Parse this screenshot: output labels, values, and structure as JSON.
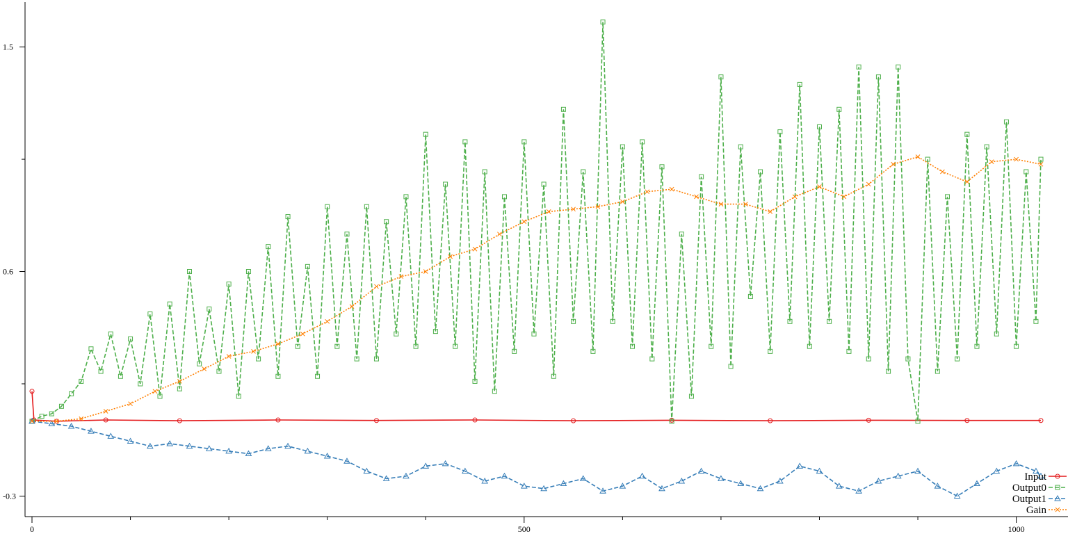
{
  "chart_data": {
    "type": "line",
    "title": "",
    "xlabel": "",
    "ylabel": "",
    "xlim": [
      0,
      1025
    ],
    "ylim": [
      -0.36,
      1.68
    ],
    "x_ticks": [
      0,
      500,
      1000
    ],
    "x_minor_ticks": [
      100,
      200,
      300,
      400,
      600,
      700,
      800,
      900
    ],
    "y_ticks": [
      -0.3,
      0.6,
      1.5
    ],
    "y_minor_ticks": [
      0.15,
      1.05
    ],
    "grid": false,
    "legend_position": "bottom-right",
    "series": [
      {
        "name": "Input",
        "color": "#e41a1c",
        "marker": "circle",
        "line": "solid",
        "values": [
          [
            0,
            0.12
          ],
          [
            2,
            0.005
          ],
          [
            25,
            0.0
          ],
          [
            75,
            0.005
          ],
          [
            150,
            0.002
          ],
          [
            250,
            0.005
          ],
          [
            350,
            0.003
          ],
          [
            450,
            0.005
          ],
          [
            550,
            0.002
          ],
          [
            650,
            0.004
          ],
          [
            750,
            0.002
          ],
          [
            850,
            0.004
          ],
          [
            950,
            0.003
          ],
          [
            1025,
            0.003
          ]
        ]
      },
      {
        "name": "Output0",
        "color": "#4daf4a",
        "marker": "square",
        "line": "dashed",
        "values": [
          [
            0,
            0.0
          ],
          [
            10,
            0.02
          ],
          [
            20,
            0.03
          ],
          [
            30,
            0.06
          ],
          [
            40,
            0.11
          ],
          [
            50,
            0.16
          ],
          [
            60,
            0.29
          ],
          [
            70,
            0.2
          ],
          [
            80,
            0.35
          ],
          [
            90,
            0.18
          ],
          [
            100,
            0.33
          ],
          [
            110,
            0.15
          ],
          [
            120,
            0.43
          ],
          [
            130,
            0.1
          ],
          [
            140,
            0.47
          ],
          [
            150,
            0.13
          ],
          [
            160,
            0.6
          ],
          [
            170,
            0.23
          ],
          [
            180,
            0.45
          ],
          [
            190,
            0.2
          ],
          [
            200,
            0.55
          ],
          [
            210,
            0.1
          ],
          [
            220,
            0.6
          ],
          [
            230,
            0.25
          ],
          [
            240,
            0.7
          ],
          [
            250,
            0.18
          ],
          [
            260,
            0.82
          ],
          [
            270,
            0.3
          ],
          [
            280,
            0.62
          ],
          [
            290,
            0.18
          ],
          [
            300,
            0.86
          ],
          [
            310,
            0.3
          ],
          [
            320,
            0.75
          ],
          [
            330,
            0.25
          ],
          [
            340,
            0.86
          ],
          [
            350,
            0.25
          ],
          [
            360,
            0.8
          ],
          [
            370,
            0.35
          ],
          [
            380,
            0.9
          ],
          [
            390,
            0.3
          ],
          [
            400,
            1.15
          ],
          [
            410,
            0.36
          ],
          [
            420,
            0.95
          ],
          [
            430,
            0.3
          ],
          [
            440,
            1.12
          ],
          [
            450,
            0.16
          ],
          [
            460,
            1.0
          ],
          [
            470,
            0.12
          ],
          [
            480,
            0.9
          ],
          [
            490,
            0.28
          ],
          [
            500,
            1.12
          ],
          [
            510,
            0.35
          ],
          [
            520,
            0.95
          ],
          [
            530,
            0.18
          ],
          [
            540,
            1.25
          ],
          [
            550,
            0.4
          ],
          [
            560,
            1.0
          ],
          [
            570,
            0.28
          ],
          [
            580,
            1.6
          ],
          [
            590,
            0.4
          ],
          [
            600,
            1.1
          ],
          [
            610,
            0.3
          ],
          [
            620,
            1.12
          ],
          [
            630,
            0.25
          ],
          [
            640,
            1.02
          ],
          [
            650,
            0.0
          ],
          [
            660,
            0.75
          ],
          [
            670,
            0.1
          ],
          [
            680,
            0.98
          ],
          [
            690,
            0.3
          ],
          [
            700,
            1.38
          ],
          [
            710,
            0.22
          ],
          [
            720,
            1.1
          ],
          [
            730,
            0.5
          ],
          [
            740,
            1.0
          ],
          [
            750,
            0.28
          ],
          [
            760,
            1.16
          ],
          [
            770,
            0.4
          ],
          [
            780,
            1.35
          ],
          [
            790,
            0.3
          ],
          [
            800,
            1.18
          ],
          [
            810,
            0.4
          ],
          [
            820,
            1.25
          ],
          [
            830,
            0.28
          ],
          [
            840,
            1.42
          ],
          [
            850,
            0.25
          ],
          [
            860,
            1.38
          ],
          [
            870,
            0.2
          ],
          [
            880,
            1.42
          ],
          [
            890,
            0.25
          ],
          [
            900,
            0.0
          ],
          [
            910,
            1.05
          ],
          [
            920,
            0.2
          ],
          [
            930,
            0.9
          ],
          [
            940,
            0.25
          ],
          [
            950,
            1.15
          ],
          [
            960,
            0.3
          ],
          [
            970,
            1.1
          ],
          [
            980,
            0.35
          ],
          [
            990,
            1.2
          ],
          [
            1000,
            0.3
          ],
          [
            1010,
            1.0
          ],
          [
            1020,
            0.4
          ],
          [
            1025,
            1.05
          ]
        ]
      },
      {
        "name": "Output1",
        "color": "#377eb8",
        "marker": "triangle",
        "line": "dashed",
        "values": [
          [
            0,
            0.0
          ],
          [
            20,
            -0.01
          ],
          [
            40,
            -0.02
          ],
          [
            60,
            -0.04
          ],
          [
            80,
            -0.06
          ],
          [
            100,
            -0.08
          ],
          [
            120,
            -0.1
          ],
          [
            140,
            -0.09
          ],
          [
            160,
            -0.1
          ],
          [
            180,
            -0.11
          ],
          [
            200,
            -0.12
          ],
          [
            220,
            -0.13
          ],
          [
            240,
            -0.11
          ],
          [
            260,
            -0.1
          ],
          [
            280,
            -0.12
          ],
          [
            300,
            -0.14
          ],
          [
            320,
            -0.16
          ],
          [
            340,
            -0.2
          ],
          [
            360,
            -0.23
          ],
          [
            380,
            -0.22
          ],
          [
            400,
            -0.18
          ],
          [
            420,
            -0.17
          ],
          [
            440,
            -0.2
          ],
          [
            460,
            -0.24
          ],
          [
            480,
            -0.22
          ],
          [
            500,
            -0.26
          ],
          [
            520,
            -0.27
          ],
          [
            540,
            -0.25
          ],
          [
            560,
            -0.23
          ],
          [
            580,
            -0.28
          ],
          [
            600,
            -0.26
          ],
          [
            620,
            -0.22
          ],
          [
            640,
            -0.27
          ],
          [
            660,
            -0.24
          ],
          [
            680,
            -0.2
          ],
          [
            700,
            -0.23
          ],
          [
            720,
            -0.25
          ],
          [
            740,
            -0.27
          ],
          [
            760,
            -0.24
          ],
          [
            780,
            -0.18
          ],
          [
            800,
            -0.2
          ],
          [
            820,
            -0.26
          ],
          [
            840,
            -0.28
          ],
          [
            860,
            -0.24
          ],
          [
            880,
            -0.22
          ],
          [
            900,
            -0.2
          ],
          [
            920,
            -0.26
          ],
          [
            940,
            -0.3
          ],
          [
            960,
            -0.25
          ],
          [
            980,
            -0.2
          ],
          [
            1000,
            -0.17
          ],
          [
            1020,
            -0.2
          ],
          [
            1025,
            -0.22
          ]
        ]
      },
      {
        "name": "Gain",
        "color": "#ff7f00",
        "marker": "x",
        "line": "dotted",
        "values": [
          [
            0,
            0.0
          ],
          [
            25,
            0.0
          ],
          [
            50,
            0.01
          ],
          [
            75,
            0.04
          ],
          [
            100,
            0.07
          ],
          [
            125,
            0.12
          ],
          [
            150,
            0.16
          ],
          [
            175,
            0.21
          ],
          [
            200,
            0.26
          ],
          [
            225,
            0.28
          ],
          [
            250,
            0.31
          ],
          [
            275,
            0.35
          ],
          [
            300,
            0.4
          ],
          [
            325,
            0.46
          ],
          [
            350,
            0.54
          ],
          [
            375,
            0.58
          ],
          [
            400,
            0.6
          ],
          [
            425,
            0.66
          ],
          [
            450,
            0.69
          ],
          [
            475,
            0.75
          ],
          [
            500,
            0.8
          ],
          [
            525,
            0.84
          ],
          [
            550,
            0.85
          ],
          [
            575,
            0.86
          ],
          [
            600,
            0.88
          ],
          [
            625,
            0.92
          ],
          [
            650,
            0.93
          ],
          [
            675,
            0.9
          ],
          [
            700,
            0.87
          ],
          [
            725,
            0.87
          ],
          [
            750,
            0.84
          ],
          [
            775,
            0.9
          ],
          [
            800,
            0.94
          ],
          [
            825,
            0.9
          ],
          [
            850,
            0.95
          ],
          [
            875,
            1.03
          ],
          [
            900,
            1.06
          ],
          [
            925,
            1.0
          ],
          [
            950,
            0.96
          ],
          [
            975,
            1.04
          ],
          [
            1000,
            1.05
          ],
          [
            1025,
            1.03
          ]
        ]
      }
    ]
  }
}
